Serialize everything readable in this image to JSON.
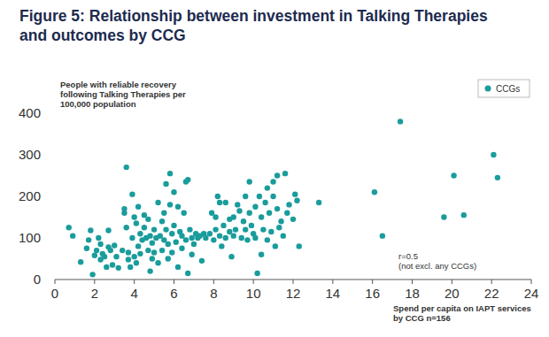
{
  "chart_data": {
    "type": "scatter",
    "title": "Figure 5: Relationship between investment in Talking Therapies\nand outcomes by CCG",
    "y_label": "People with reliable recovery\nfollowing Talking Therapies per\n100,000 population",
    "x_label": "Spend per capita on IAPT services\nby CCG n=156",
    "annotations": [
      "r=0.5",
      "(not excl. any CCGs)"
    ],
    "legend": "top-right",
    "marker": "circle",
    "grid": false,
    "xlim": [
      0,
      24
    ],
    "xticks": [
      0,
      2,
      4,
      6,
      8,
      10,
      12,
      14,
      16,
      18,
      20,
      22,
      24
    ],
    "ylim": [
      0,
      400
    ],
    "yticks": [
      0,
      100,
      200,
      300,
      400
    ],
    "series": [
      {
        "name": "CCGs",
        "color": "#1a9c9c",
        "x": [
          0.7,
          0.9,
          1.3,
          1.6,
          1.7,
          1.8,
          1.9,
          2.0,
          2.1,
          2.2,
          2.3,
          2.3,
          2.4,
          2.5,
          2.6,
          2.7,
          2.7,
          2.8,
          2.9,
          3.0,
          3.1,
          3.2,
          3.4,
          3.5,
          3.5,
          3.6,
          3.6,
          3.7,
          3.7,
          3.8,
          3.9,
          3.9,
          4.0,
          4.0,
          4.1,
          4.1,
          4.2,
          4.2,
          4.3,
          4.3,
          4.4,
          4.5,
          4.5,
          4.6,
          4.7,
          4.7,
          4.8,
          4.8,
          4.9,
          4.9,
          5.0,
          5.0,
          5.1,
          5.2,
          5.2,
          5.3,
          5.4,
          5.4,
          5.5,
          5.5,
          5.6,
          5.6,
          5.7,
          5.7,
          5.8,
          5.8,
          5.9,
          5.9,
          6.0,
          6.0,
          6.1,
          6.2,
          6.2,
          6.3,
          6.4,
          6.4,
          6.5,
          6.6,
          6.6,
          6.7,
          6.7,
          6.8,
          6.9,
          6.9,
          7.0,
          7.1,
          7.2,
          7.3,
          7.4,
          7.5,
          7.6,
          7.8,
          7.9,
          8.0,
          8.1,
          8.1,
          8.2,
          8.3,
          8.3,
          8.4,
          8.5,
          8.6,
          8.8,
          8.8,
          8.9,
          9.0,
          9.0,
          9.1,
          9.2,
          9.3,
          9.4,
          9.5,
          9.6,
          9.6,
          9.7,
          9.8,
          9.8,
          9.9,
          10.0,
          10.1,
          10.1,
          10.2,
          10.3,
          10.4,
          10.4,
          10.5,
          10.6,
          10.7,
          10.7,
          10.8,
          10.9,
          11.0,
          11.0,
          11.1,
          11.2,
          11.2,
          11.3,
          11.4,
          11.5,
          11.6,
          11.7,
          11.8,
          12.0,
          12.1,
          12.2,
          12.3,
          13.3,
          16.1,
          16.5,
          17.4,
          19.6,
          20.1,
          20.6,
          22.1,
          22.3,
          8.6
        ],
        "values": [
          125,
          105,
          42,
          75,
          95,
          118,
          12,
          58,
          70,
          100,
          48,
          85,
          62,
          55,
          30,
          118,
          78,
          70,
          35,
          82,
          55,
          28,
          70,
          160,
          170,
          270,
          125,
          65,
          48,
          30,
          205,
          100,
          55,
          150,
          40,
          135,
          175,
          80,
          110,
          62,
          95,
          155,
          125,
          100,
          70,
          145,
          105,
          20,
          88,
          50,
          120,
          65,
          100,
          185,
          40,
          105,
          140,
          70,
          160,
          95,
          230,
          120,
          85,
          50,
          255,
          180,
          110,
          65,
          210,
          130,
          90,
          175,
          30,
          115,
          105,
          75,
          160,
          235,
          95,
          240,
          15,
          120,
          100,
          60,
          85,
          110,
          100,
          105,
          45,
          110,
          100,
          110,
          160,
          95,
          150,
          120,
          200,
          185,
          105,
          80,
          130,
          100,
          145,
          115,
          55,
          150,
          105,
          120,
          180,
          165,
          100,
          140,
          200,
          120,
          95,
          235,
          160,
          130,
          110,
          175,
          100,
          15,
          200,
          150,
          60,
          120,
          185,
          220,
          95,
          160,
          115,
          235,
          200,
          80,
          250,
          170,
          125,
          140,
          105,
          255,
          160,
          180,
          145,
          205,
          190,
          80,
          185,
          210,
          105,
          380,
          150,
          250,
          155,
          300,
          245,
          185
        ]
      }
    ]
  }
}
